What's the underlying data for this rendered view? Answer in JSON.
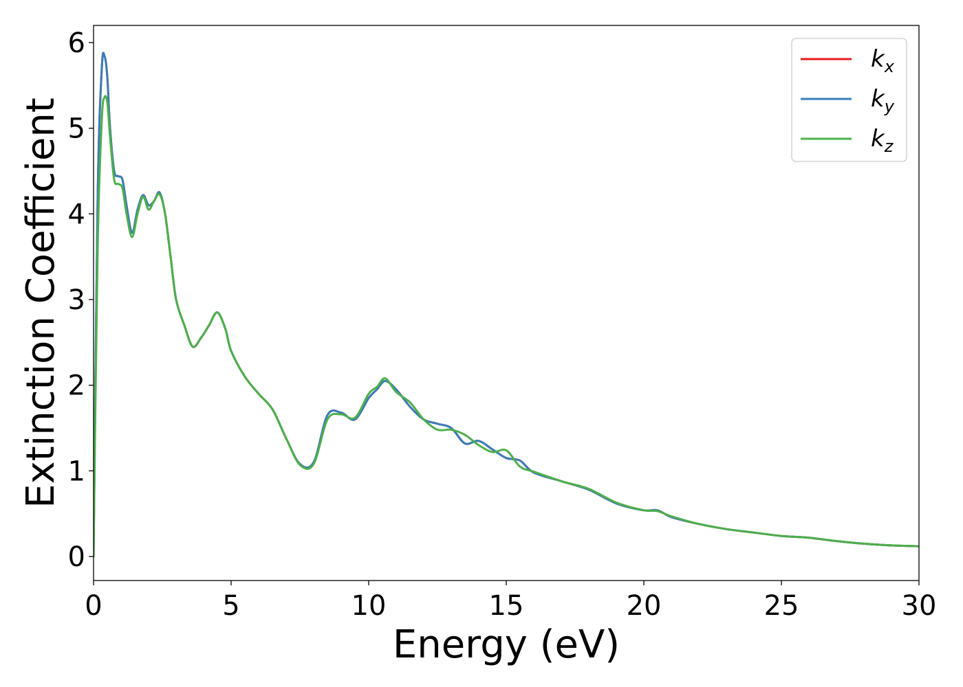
{
  "chart_data": {
    "type": "line",
    "xlabel": "Energy (eV)",
    "ylabel": "Extinction Coefficient",
    "xlim": [
      0,
      30
    ],
    "ylim": [
      -0.28,
      6.2
    ],
    "xticks": [
      "0",
      "5",
      "10",
      "15",
      "20",
      "25",
      "30"
    ],
    "yticks": [
      "0",
      "1",
      "2",
      "3",
      "4",
      "5",
      "6"
    ],
    "grid": false,
    "legend_position": "top-right",
    "series": [
      {
        "name": "k_x",
        "legend_main": "k",
        "legend_sub": "x",
        "color": "#e41a1c",
        "x": [
          0,
          0.15,
          0.3,
          0.4,
          0.5,
          0.6,
          0.75,
          0.9,
          1.05,
          1.2,
          1.4,
          1.6,
          1.8,
          2.0,
          2.2,
          2.4,
          2.6,
          2.8,
          3.0,
          3.3,
          3.6,
          3.9,
          4.2,
          4.5,
          4.8,
          5.0,
          5.5,
          6.0,
          6.5,
          7.0,
          7.5,
          8.0,
          8.5,
          9.0,
          9.5,
          10.0,
          10.3,
          10.6,
          11.0,
          11.5,
          12.0,
          12.5,
          13.0,
          13.5,
          14.0,
          14.5,
          15.0,
          15.5,
          16.0,
          17.0,
          18.0,
          19.0,
          20.0,
          20.5,
          21.0,
          22.0,
          23.0,
          24.0,
          25.0,
          26.0,
          27.0,
          28.0,
          29.0,
          30.0
        ],
        "y": [
          0,
          4.2,
          5.7,
          5.84,
          5.6,
          5.0,
          4.5,
          4.44,
          4.4,
          4.1,
          3.78,
          4.05,
          4.22,
          4.1,
          4.15,
          4.25,
          4.0,
          3.5,
          3.0,
          2.7,
          2.45,
          2.55,
          2.7,
          2.85,
          2.65,
          2.4,
          2.1,
          1.9,
          1.72,
          1.38,
          1.08,
          1.1,
          1.65,
          1.68,
          1.6,
          1.85,
          1.95,
          2.05,
          1.95,
          1.75,
          1.6,
          1.55,
          1.5,
          1.32,
          1.35,
          1.25,
          1.15,
          1.12,
          0.98,
          0.88,
          0.78,
          0.62,
          0.54,
          0.54,
          0.46,
          0.38,
          0.32,
          0.28,
          0.24,
          0.22,
          0.18,
          0.15,
          0.13,
          0.12
        ]
      },
      {
        "name": "k_y",
        "legend_main": "k",
        "legend_sub": "y",
        "color": "#377eb8",
        "x": [
          0,
          0.15,
          0.3,
          0.4,
          0.5,
          0.6,
          0.75,
          0.9,
          1.05,
          1.2,
          1.4,
          1.6,
          1.8,
          2.0,
          2.2,
          2.4,
          2.6,
          2.8,
          3.0,
          3.3,
          3.6,
          3.9,
          4.2,
          4.5,
          4.8,
          5.0,
          5.5,
          6.0,
          6.5,
          7.0,
          7.5,
          8.0,
          8.5,
          9.0,
          9.5,
          10.0,
          10.3,
          10.6,
          11.0,
          11.5,
          12.0,
          12.5,
          13.0,
          13.5,
          14.0,
          14.5,
          15.0,
          15.5,
          16.0,
          17.0,
          18.0,
          19.0,
          20.0,
          20.5,
          21.0,
          22.0,
          23.0,
          24.0,
          25.0,
          26.0,
          27.0,
          28.0,
          29.0,
          30.0
        ],
        "y": [
          0,
          4.2,
          5.7,
          5.84,
          5.6,
          5.0,
          4.5,
          4.44,
          4.4,
          4.1,
          3.78,
          4.05,
          4.22,
          4.1,
          4.15,
          4.25,
          4.0,
          3.5,
          3.0,
          2.7,
          2.45,
          2.55,
          2.7,
          2.85,
          2.65,
          2.4,
          2.1,
          1.9,
          1.72,
          1.38,
          1.08,
          1.1,
          1.65,
          1.68,
          1.6,
          1.85,
          1.95,
          2.05,
          1.95,
          1.75,
          1.6,
          1.55,
          1.5,
          1.32,
          1.35,
          1.25,
          1.15,
          1.12,
          0.98,
          0.88,
          0.78,
          0.62,
          0.54,
          0.54,
          0.46,
          0.38,
          0.32,
          0.28,
          0.24,
          0.22,
          0.18,
          0.15,
          0.13,
          0.12
        ]
      },
      {
        "name": "k_z",
        "legend_main": "k",
        "legend_sub": "z",
        "color": "#4daf4a",
        "x": [
          0,
          0.15,
          0.3,
          0.4,
          0.5,
          0.6,
          0.75,
          0.9,
          1.05,
          1.2,
          1.4,
          1.6,
          1.8,
          2.0,
          2.2,
          2.4,
          2.6,
          2.8,
          3.0,
          3.3,
          3.6,
          3.9,
          4.2,
          4.5,
          4.8,
          5.0,
          5.5,
          6.0,
          6.5,
          7.0,
          7.5,
          8.0,
          8.5,
          9.0,
          9.5,
          10.0,
          10.3,
          10.6,
          11.0,
          11.5,
          12.0,
          12.5,
          13.0,
          13.5,
          14.0,
          14.5,
          15.0,
          15.5,
          16.0,
          17.0,
          18.0,
          19.0,
          20.0,
          20.5,
          21.0,
          22.0,
          23.0,
          24.0,
          25.0,
          26.0,
          27.0,
          28.0,
          29.0,
          30.0
        ],
        "y": [
          0,
          3.6,
          5.1,
          5.36,
          5.3,
          4.9,
          4.4,
          4.35,
          4.3,
          4.0,
          3.73,
          4.0,
          4.2,
          4.05,
          4.15,
          4.23,
          4.0,
          3.5,
          3.0,
          2.7,
          2.45,
          2.55,
          2.7,
          2.85,
          2.65,
          2.4,
          2.1,
          1.9,
          1.72,
          1.38,
          1.07,
          1.08,
          1.6,
          1.66,
          1.62,
          1.9,
          1.98,
          2.08,
          1.92,
          1.8,
          1.6,
          1.48,
          1.48,
          1.42,
          1.3,
          1.22,
          1.24,
          1.05,
          0.99,
          0.88,
          0.79,
          0.63,
          0.54,
          0.53,
          0.47,
          0.38,
          0.32,
          0.28,
          0.24,
          0.22,
          0.18,
          0.15,
          0.13,
          0.12
        ]
      }
    ]
  }
}
